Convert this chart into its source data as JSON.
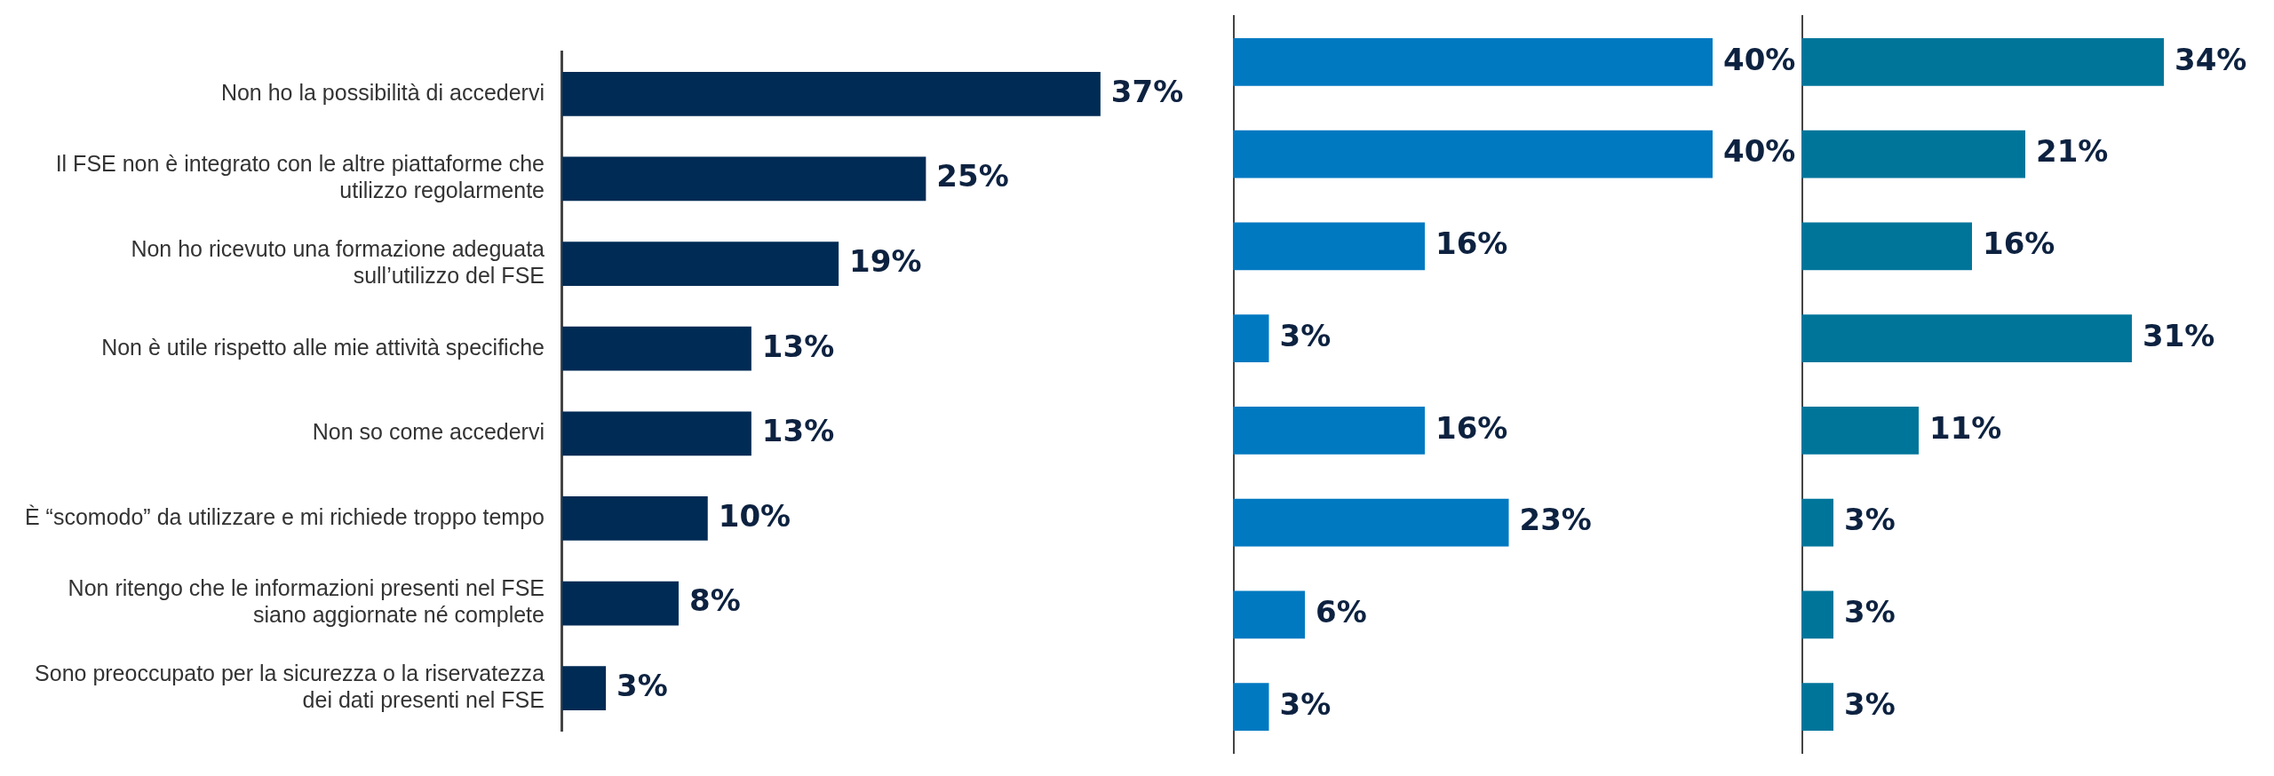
{
  "chart_data": [
    {
      "type": "bar",
      "orientation": "horizontal",
      "categories": [
        "Non ho la possibilità di accedervi",
        "Il FSE non è integrato con le altre piattaforme che utilizzo regolarmente",
        "Non ho ricevuto una formazione adeguata sull’utilizzo del FSE",
        "Non è utile rispetto alle mie attività specifiche",
        "Non so come accedervi",
        "È “scomodo” da utilizzare e mi richiede troppo tempo",
        "Non ritengo che le informazioni presenti nel FSE siano aggiornate né complete",
        "Sono preoccupato per la sicurezza o la riservatezza dei dati presenti nel FSE"
      ],
      "values": [
        37,
        25,
        19,
        13,
        13,
        10,
        8,
        3
      ],
      "color": "#002b54",
      "tick_labels": "y",
      "value_labels": [
        "37%",
        "25%",
        "19%",
        "13%",
        "13%",
        "10%",
        "8%",
        "3%"
      ]
    },
    {
      "type": "bar",
      "orientation": "horizontal",
      "values": [
        40,
        40,
        16,
        3,
        16,
        23,
        6,
        3
      ],
      "color": "#0079c1",
      "tick_labels": false,
      "categories": [
        null,
        null,
        null,
        null,
        null,
        null,
        null,
        null
      ],
      "value_labels": [
        "40%",
        "40%",
        "16%",
        "3%",
        "16%",
        "23%",
        "6%",
        "3%"
      ]
    },
    {
      "type": "bar",
      "orientation": "horizontal",
      "values": [
        34,
        21,
        16,
        31,
        11,
        3,
        3,
        3
      ],
      "color": "#00759a",
      "tick_labels": false,
      "categories": [
        null,
        null,
        null,
        null,
        null,
        null,
        null,
        null
      ],
      "value_labels": [
        "34%",
        "21%",
        "16%",
        "31%",
        "11%",
        "3%",
        "3%",
        "3%"
      ]
    }
  ]
}
